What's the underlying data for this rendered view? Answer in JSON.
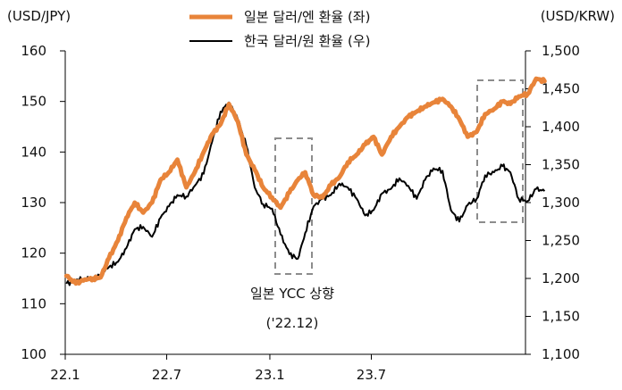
{
  "chart_data": {
    "type": "line",
    "title": "",
    "xlabel": "",
    "left_axis_unit": "(USD/JPY)",
    "right_axis_unit": "(USD/KRW)",
    "x_ticks": [
      "22.1",
      "22.7",
      "23.1",
      "23.7"
    ],
    "x_range": [
      "2022-01",
      "2024-04"
    ],
    "y_left": {
      "ylim": [
        100,
        160
      ],
      "ticks": [
        "100",
        "110",
        "120",
        "130",
        "140",
        "150",
        "160"
      ]
    },
    "y_right": {
      "ylim": [
        1100,
        1500
      ],
      "ticks": [
        "1,100",
        "1,150",
        "1,200",
        "1,250",
        "1,300",
        "1,350",
        "1,400",
        "1,450",
        "1,500"
      ]
    },
    "grid": false,
    "legend_position": "top-center",
    "series": [
      {
        "name": "일본 달러/엔 환율 (좌)",
        "axis": "left",
        "color": "#E8843A",
        "x": [
          "2022-01-03",
          "2022-01-20",
          "2022-02-05",
          "2022-02-20",
          "2022-03-05",
          "2022-03-20",
          "2022-04-05",
          "2022-04-20",
          "2022-05-05",
          "2022-05-20",
          "2022-06-05",
          "2022-06-20",
          "2022-07-05",
          "2022-07-20",
          "2022-08-05",
          "2022-08-20",
          "2022-09-05",
          "2022-09-20",
          "2022-10-05",
          "2022-10-20",
          "2022-11-05",
          "2022-11-20",
          "2022-12-05",
          "2022-12-20",
          "2023-01-05",
          "2023-01-20",
          "2023-02-05",
          "2023-02-20",
          "2023-03-05",
          "2023-03-20",
          "2023-04-05",
          "2023-04-20",
          "2023-05-05",
          "2023-05-20",
          "2023-06-05",
          "2023-06-20",
          "2023-07-05",
          "2023-07-20",
          "2023-08-05",
          "2023-08-20",
          "2023-09-05",
          "2023-09-20",
          "2023-10-05",
          "2023-10-20",
          "2023-11-05",
          "2023-11-20",
          "2023-12-05",
          "2023-12-20",
          "2024-01-05",
          "2024-01-20",
          "2024-02-05",
          "2024-02-20",
          "2024-03-05",
          "2024-03-20",
          "2024-04-05",
          "2024-04-20",
          "2024-05-05"
        ],
        "values": [
          115.5,
          114.0,
          114.8,
          115.0,
          115.2,
          119.0,
          122.5,
          127.0,
          130.0,
          128.0,
          130.0,
          134.5,
          136.0,
          138.5,
          133.0,
          136.0,
          140.0,
          143.5,
          145.5,
          149.5,
          146.0,
          139.5,
          136.5,
          133.0,
          131.0,
          129.0,
          132.0,
          134.5,
          136.0,
          131.5,
          131.0,
          133.5,
          135.0,
          138.0,
          139.5,
          141.5,
          143.0,
          139.5,
          143.0,
          145.0,
          147.0,
          148.0,
          149.0,
          149.8,
          150.5,
          149.0,
          146.5,
          143.0,
          144.0,
          147.5,
          148.5,
          150.0,
          149.5,
          151.0,
          151.5,
          154.5,
          154.0
        ]
      },
      {
        "name": "한국 달러/원 환율 (우)",
        "axis": "right",
        "color": "#000000",
        "x": [
          "2022-01-03",
          "2022-01-20",
          "2022-02-05",
          "2022-02-20",
          "2022-03-05",
          "2022-03-20",
          "2022-04-05",
          "2022-04-20",
          "2022-05-05",
          "2022-05-20",
          "2022-06-05",
          "2022-06-20",
          "2022-07-05",
          "2022-07-20",
          "2022-08-05",
          "2022-08-20",
          "2022-09-05",
          "2022-09-20",
          "2022-10-05",
          "2022-10-20",
          "2022-11-05",
          "2022-11-20",
          "2022-12-05",
          "2022-12-20",
          "2023-01-05",
          "2023-01-20",
          "2023-02-05",
          "2023-02-20",
          "2023-03-05",
          "2023-03-20",
          "2023-04-05",
          "2023-04-20",
          "2023-05-05",
          "2023-05-20",
          "2023-06-05",
          "2023-06-20",
          "2023-07-05",
          "2023-07-20",
          "2023-08-05",
          "2023-08-20",
          "2023-09-05",
          "2023-09-20",
          "2023-10-05",
          "2023-10-20",
          "2023-11-05",
          "2023-11-20",
          "2023-12-05",
          "2023-12-20",
          "2024-01-05",
          "2024-01-20",
          "2024-02-05",
          "2024-02-20",
          "2024-03-05",
          "2024-03-20",
          "2024-04-05",
          "2024-04-20",
          "2024-05-05"
        ],
        "values": [
          1193,
          1198,
          1200,
          1199,
          1205,
          1215,
          1222,
          1240,
          1265,
          1268,
          1255,
          1280,
          1295,
          1310,
          1308,
          1322,
          1338,
          1380,
          1420,
          1432,
          1410,
          1375,
          1320,
          1298,
          1292,
          1258,
          1232,
          1226,
          1260,
          1295,
          1305,
          1310,
          1325,
          1320,
          1305,
          1283,
          1290,
          1312,
          1318,
          1332,
          1322,
          1305,
          1330,
          1345,
          1342,
          1290,
          1275,
          1297,
          1305,
          1336,
          1340,
          1348,
          1340,
          1305,
          1302,
          1318,
          1315
        ]
      }
    ],
    "annotations": [
      {
        "text": "일본 YCC 상향",
        "sub": "('22.12)"
      }
    ]
  }
}
